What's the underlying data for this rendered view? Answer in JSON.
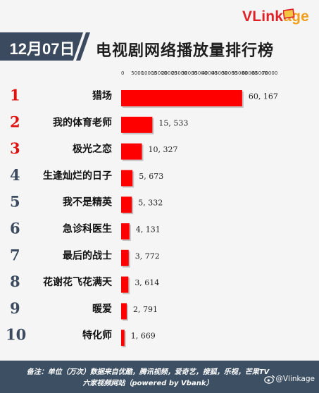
{
  "brand": {
    "logo_v": "V",
    "logo_link": "Link",
    "logo_age": "age"
  },
  "header": {
    "date": "12月07日",
    "title": "电视剧网络播放量排行榜"
  },
  "chart_data": {
    "type": "bar",
    "orientation": "horizontal",
    "title": "电视剧网络播放量排行榜",
    "categories": [
      "猎场",
      "我的体育老师",
      "极光之恋",
      "生逢灿烂的日子",
      "我不是精英",
      "急诊科医生",
      "最后的战士",
      "花谢花飞花满天",
      "暖爱",
      "特化师"
    ],
    "ranks": [
      "1",
      "2",
      "3",
      "4",
      "5",
      "6",
      "7",
      "8",
      "9",
      "10"
    ],
    "values": [
      60167,
      15533,
      10327,
      5673,
      5332,
      4131,
      3772,
      3614,
      2791,
      1669
    ],
    "value_labels": [
      "60, 167",
      "15, 533",
      "10, 327",
      "5, 673",
      "5, 332",
      "4, 131",
      "3, 772",
      "3, 614",
      "2, 791",
      "1, 669"
    ],
    "x_ticks": [
      "0",
      "5000",
      "10000",
      "15000",
      "20000",
      "25000",
      "30000",
      "35000",
      "40000",
      "45000",
      "50000",
      "55000",
      "60000",
      "65000",
      "70000"
    ],
    "xlim": [
      0,
      70000
    ],
    "bar_color": "#ff0000",
    "rank_colors": [
      "#e11010",
      "#e11010",
      "#e11010",
      "#3b4a5e",
      "#3b4a5e",
      "#3b4a5e",
      "#3b4a5e",
      "#3b4a5e",
      "#3b4a5e",
      "#3b4a5e"
    ]
  },
  "footer": {
    "line1": "备注：单位（万次）数据来自优酷，腾讯视频，爱奇艺，搜狐，乐视，芒果TV",
    "line2": "六家视频网站（powered by Vbank）",
    "weibo": "@Vlinkage"
  }
}
